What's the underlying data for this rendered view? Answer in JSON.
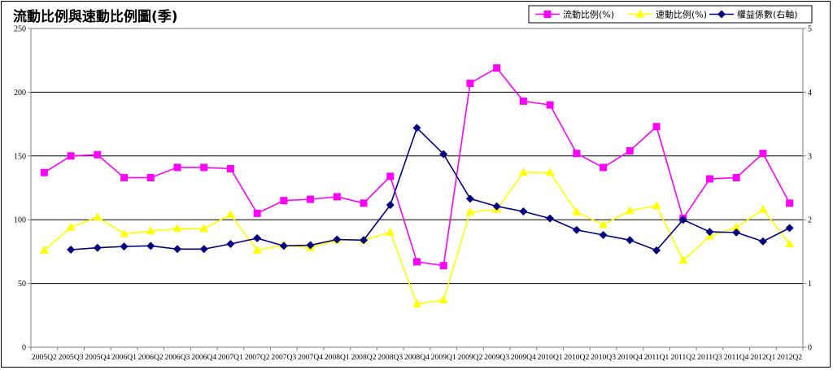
{
  "chart_data": {
    "type": "line",
    "title": "流動比例與速動比例圖(季)",
    "categories": [
      "2005Q2",
      "2005Q3",
      "2005Q4",
      "2006Q1",
      "2006Q2",
      "2006Q3",
      "2006Q4",
      "2007Q1",
      "2007Q2",
      "2007Q3",
      "2007Q4",
      "2008Q1",
      "2008Q2",
      "2008Q3",
      "2008Q4",
      "2009Q1",
      "2009Q2",
      "2009Q3",
      "2009Q4",
      "2010Q1",
      "2010Q2",
      "2010Q3",
      "2010Q4",
      "2011Q1",
      "2011Q2",
      "2011Q3",
      "2011Q4",
      "2012Q1",
      "2012Q2"
    ],
    "y_left": {
      "ylim": [
        0,
        250
      ],
      "ticks": [
        "0",
        "50",
        "100",
        "150",
        "200",
        "250"
      ]
    },
    "y_right": {
      "ylim": [
        0,
        5
      ],
      "ticks": [
        "0",
        "1",
        "2",
        "3",
        "4",
        "5"
      ]
    },
    "grid": "horizontal",
    "legend_position": "top-right",
    "series": [
      {
        "name": "流動比例(%)",
        "axis": "left",
        "color": "#ff00ff",
        "marker": "square",
        "values": [
          137,
          150,
          151,
          133,
          133,
          141,
          141,
          140,
          105,
          115,
          116,
          118,
          113,
          134,
          67,
          64,
          207,
          219,
          193,
          190,
          152,
          141,
          154,
          173,
          101,
          132,
          133,
          152,
          113
        ]
      },
      {
        "name": "速動比例(%)",
        "axis": "left",
        "color": "#ffff00",
        "marker": "triangle",
        "values": [
          76,
          94,
          102,
          89,
          91,
          93,
          93,
          104,
          76,
          80,
          78,
          84,
          84,
          90,
          34,
          37,
          106,
          108,
          137,
          137,
          106,
          96,
          107,
          111,
          68,
          87,
          94,
          108,
          81
        ]
      },
      {
        "name": "權益係數(右軸)",
        "axis": "right",
        "color": "#000080",
        "marker": "diamond",
        "values": [
          null,
          1.53,
          1.56,
          1.58,
          1.59,
          1.54,
          1.54,
          1.62,
          1.71,
          1.59,
          1.6,
          1.69,
          1.68,
          2.23,
          3.44,
          3.03,
          2.33,
          2.21,
          2.13,
          2.02,
          1.84,
          1.76,
          1.68,
          1.52,
          2.0,
          1.81,
          1.8,
          1.66,
          1.87
        ]
      }
    ]
  }
}
